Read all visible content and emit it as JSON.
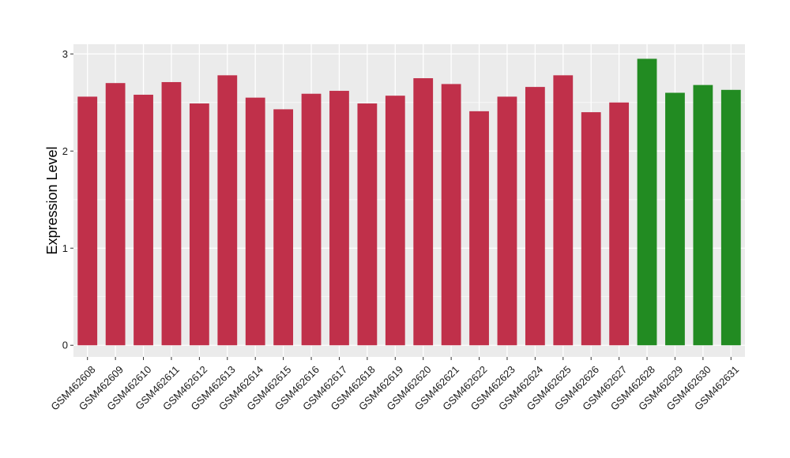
{
  "chart_data": {
    "type": "bar",
    "title": "",
    "xlabel": "",
    "ylabel": "Expression Level",
    "ylim": [
      -0.12,
      3.1
    ],
    "yticks": [
      0,
      1,
      2,
      3
    ],
    "ytick_labels": [
      "0",
      "1",
      "2",
      "3"
    ],
    "grid": true,
    "legend": "none",
    "categories": [
      "GSM462608",
      "GSM462609",
      "GSM462610",
      "GSM462611",
      "GSM462612",
      "GSM462613",
      "GSM462614",
      "GSM462615",
      "GSM462616",
      "GSM462617",
      "GSM462618",
      "GSM462619",
      "GSM462620",
      "GSM462621",
      "GSM462622",
      "GSM462623",
      "GSM462624",
      "GSM462625",
      "GSM462626",
      "GSM462627",
      "GSM462628",
      "GSM462629",
      "GSM462630",
      "GSM462631"
    ],
    "values": [
      2.56,
      2.7,
      2.58,
      2.71,
      2.49,
      2.78,
      2.55,
      2.43,
      2.59,
      2.62,
      2.49,
      2.57,
      2.75,
      2.69,
      2.41,
      2.56,
      2.66,
      2.78,
      2.4,
      2.5,
      2.95,
      2.6,
      2.68,
      2.63
    ],
    "groups": [
      "a",
      "a",
      "a",
      "a",
      "a",
      "a",
      "a",
      "a",
      "a",
      "a",
      "a",
      "a",
      "a",
      "a",
      "a",
      "a",
      "a",
      "a",
      "a",
      "a",
      "b",
      "b",
      "b",
      "b"
    ],
    "group_colors": {
      "a": "#c0304a",
      "b": "#228b22"
    },
    "panel_color": "#ebebeb",
    "grid_color": "#ffffff"
  }
}
